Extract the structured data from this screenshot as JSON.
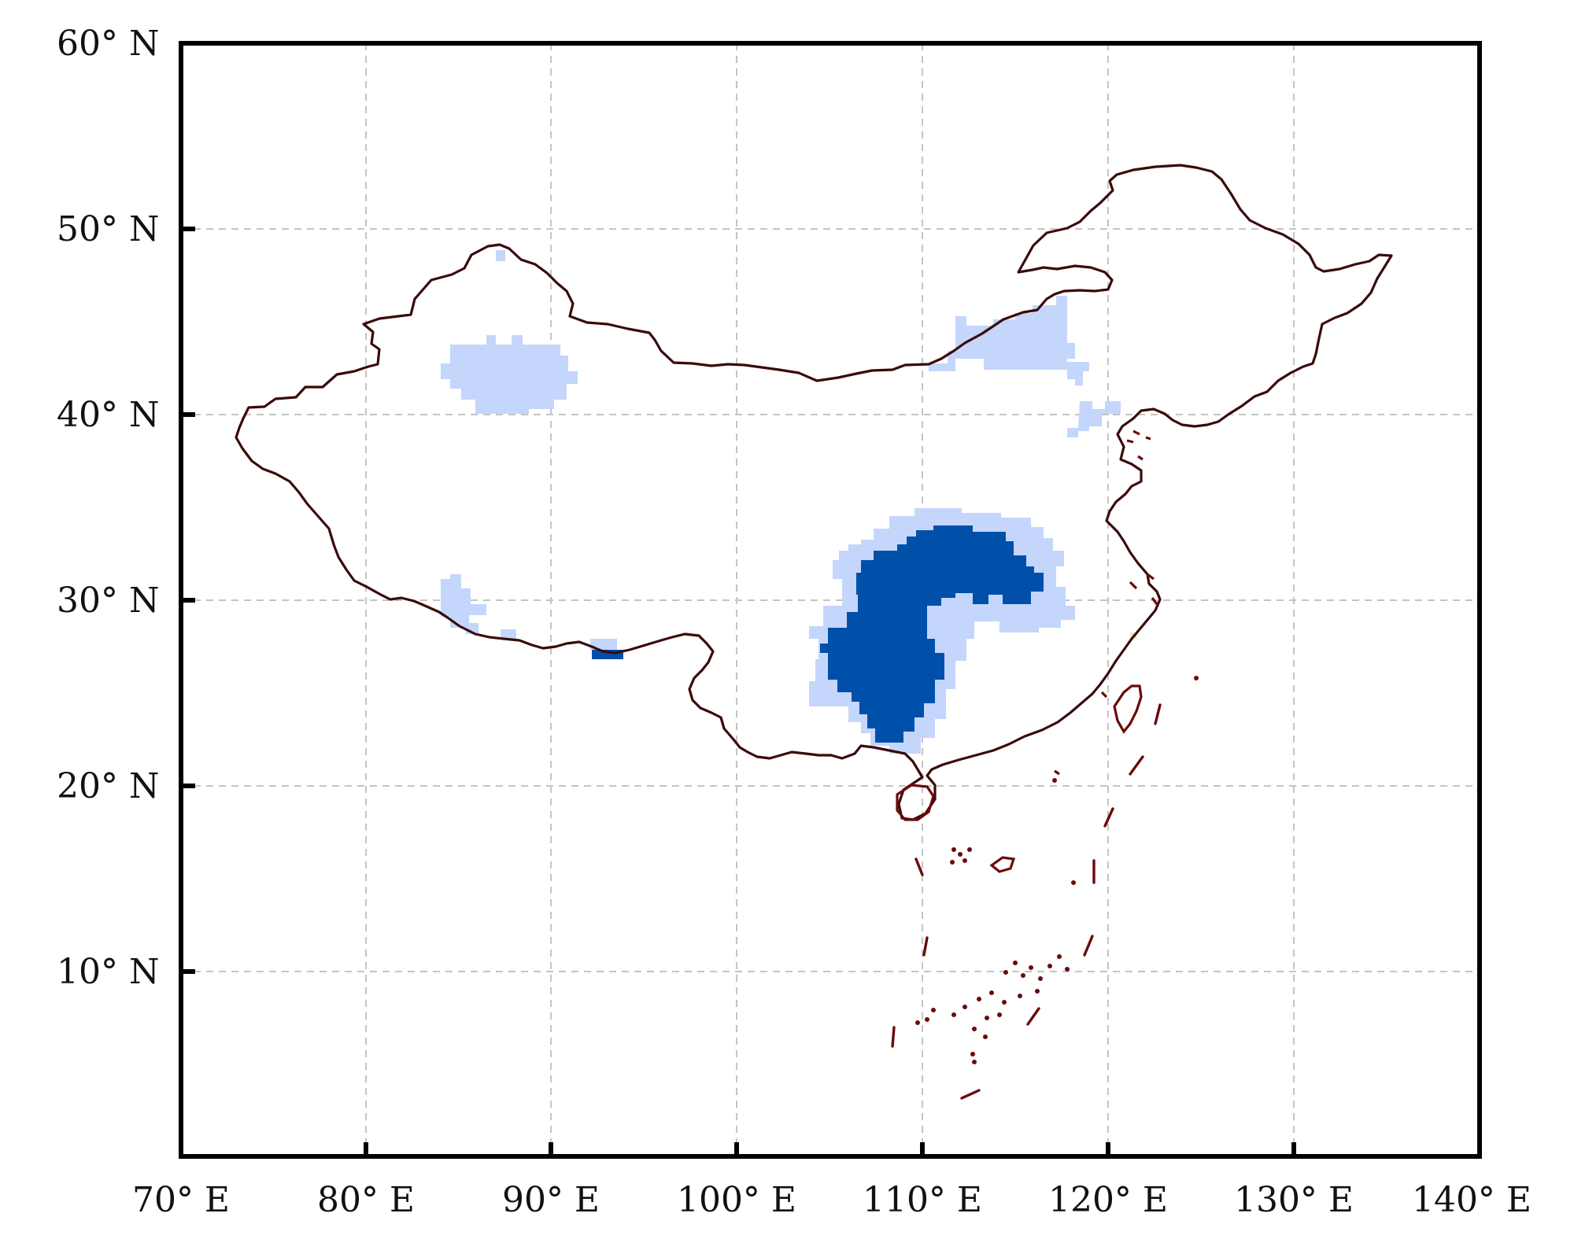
{
  "map": {
    "x_axis": {
      "ticks": [
        "70° E",
        "80° E",
        "90° E",
        "100° E",
        "110° E",
        "120° E",
        "130° E",
        "140° E"
      ],
      "range_deg": [
        70,
        140
      ]
    },
    "y_axis": {
      "ticks": [
        "10° N",
        "20° N",
        "30° N",
        "40° N",
        "50° N",
        "60° N"
      ],
      "range_deg": [
        0,
        60
      ]
    },
    "grid": "dashed",
    "colors": {
      "light_region": "#c4d6fb",
      "dark_region": "#0050aa",
      "border": "#3a0a0a",
      "islands": "#6b0a0a"
    }
  }
}
